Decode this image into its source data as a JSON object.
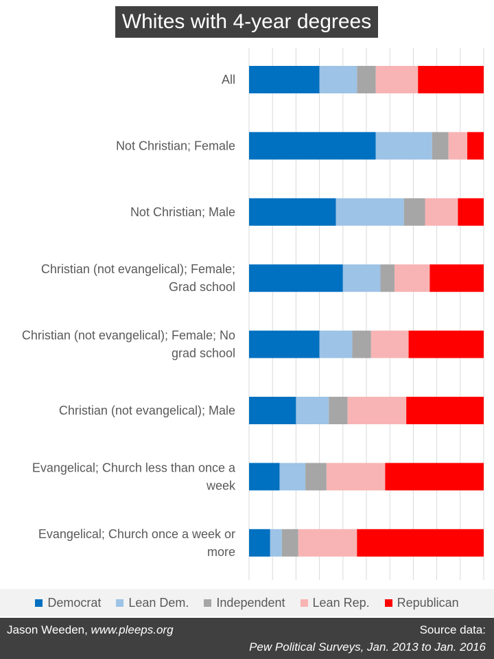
{
  "title": "Whites with 4-year degrees",
  "chart_data": {
    "type": "bar",
    "orientation": "horizontal",
    "stacked": "100%",
    "title": "Whites with 4-year degrees",
    "categories": [
      [
        "All"
      ],
      [
        "Not Christian; Female"
      ],
      [
        "Not Christian; Male"
      ],
      [
        "Christian (not evangelical); Female;",
        "Grad school"
      ],
      [
        "Christian (not evangelical); Female; No",
        "grad school"
      ],
      [
        "Christian (not evangelical); Male"
      ],
      [
        "Evangelical; Church less than once a",
        "week"
      ],
      [
        "Evangelical; Church once a week or",
        "more"
      ]
    ],
    "series": [
      {
        "name": "Democrat",
        "color": "#0070c0",
        "values": [
          30,
          54,
          37,
          40,
          30,
          20,
          13,
          9
        ]
      },
      {
        "name": "Lean Dem.",
        "color": "#9dc3e6",
        "values": [
          16,
          24,
          29,
          16,
          14,
          14,
          11,
          5
        ]
      },
      {
        "name": "Independent",
        "color": "#a6a6a6",
        "values": [
          8,
          7,
          9,
          6,
          8,
          8,
          9,
          7
        ]
      },
      {
        "name": "Lean Rep.",
        "color": "#f8b4b4",
        "values": [
          18,
          8,
          14,
          15,
          16,
          25,
          25,
          25
        ]
      },
      {
        "name": "Republican",
        "color": "#ff0000",
        "values": [
          28,
          7,
          11,
          23,
          32,
          33,
          42,
          54
        ]
      }
    ],
    "xlim": [
      0,
      100
    ],
    "grid": true,
    "legend_position": "bottom"
  },
  "footer": {
    "author": "Jason Weeden, ",
    "site": "www.pleeps.org",
    "source_label": "Source data:",
    "source_text": "Pew  Political Surveys, Jan. 2013 to Jan. 2016"
  }
}
